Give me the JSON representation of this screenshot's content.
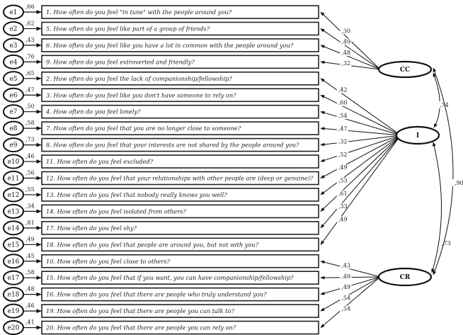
{
  "items": [
    {
      "error": "e1",
      "error_loading": ",66",
      "text": "1. How often do you feel \"in tune\" with the people around you?",
      "factor": "CC",
      "loading": ",30"
    },
    {
      "error": "e2",
      "error_loading": ",62",
      "text": "5. How often do you feel like part of a group of friends?",
      "factor": "CC",
      "loading": ",49"
    },
    {
      "error": "e3",
      "error_loading": ",43",
      "text": "6. How often do you feel like you have a lot in common with the people around you?",
      "factor": "CC",
      "loading": ",48"
    },
    {
      "error": "e4",
      "error_loading": ",76",
      "text": "9. How often do you feel extroverted and friendly?",
      "factor": "CC",
      "loading": ",32"
    },
    {
      "error": "e5",
      "error_loading": ",65",
      "text": "2. How often do you feel the lack of companionship/fellowship?",
      "factor": "I",
      "loading": ",42"
    },
    {
      "error": "e6",
      "error_loading": ",47",
      "text": "3. How often do you feel like you don't have someone to rely on?",
      "factor": "I",
      "loading": ",60"
    },
    {
      "error": "e7",
      "error_loading": ",50",
      "text": "4. How often do you feel lonely?",
      "factor": "I",
      "loading": ",54"
    },
    {
      "error": "e8",
      "error_loading": ",58",
      "text": "7. How often do you feel that you are no longer close to someone?",
      "factor": "I",
      "loading": ",47"
    },
    {
      "error": "e9",
      "error_loading": ",73",
      "text": "8.  How often do you feel that your interests are not shared by the people around you?",
      "factor": "I",
      "loading": ",32"
    },
    {
      "error": "e10",
      "error_loading": ",46",
      "text": "11. How often do you feel excluded?",
      "factor": "I",
      "loading": ",52"
    },
    {
      "error": "e11",
      "error_loading": ",56",
      "text": "12. How often do you feel that your relationships with other people are (deep or genuine)?",
      "factor": "I",
      "loading": ",49"
    },
    {
      "error": "e12",
      "error_loading": ",55",
      "text": "13. How often do you feel that nobody really knows you well?",
      "factor": "I",
      "loading": ",53"
    },
    {
      "error": "e13",
      "error_loading": ",34",
      "text": "14. How often do you feel isolated from others?",
      "factor": "I",
      "loading": ",61"
    },
    {
      "error": "e14",
      "error_loading": ",81",
      "text": "17. How often do you feel shy?",
      "factor": "I",
      "loading": ",33"
    },
    {
      "error": "e15",
      "error_loading": ",49",
      "text": "18. How often do you feel that people are around you, but not with you?",
      "factor": "I",
      "loading": ",49"
    },
    {
      "error": "e16",
      "error_loading": ",45",
      "text": "10. How often do you feel close to others?",
      "factor": "CR",
      "loading": ",43"
    },
    {
      "error": "e17",
      "error_loading": ",58",
      "text": "15. How often do you feel that if you want, you can have companionship/fellowship?",
      "factor": "CR",
      "loading": ",49"
    },
    {
      "error": "e18",
      "error_loading": ",48",
      "text": "16. How often do you feel that there are people who truly understand you?",
      "factor": "CR",
      "loading": ",49"
    },
    {
      "error": "e19",
      "error_loading": ",46",
      "text": "19. How often do you feel that there are people you can talk to?",
      "factor": "CR",
      "loading": ",54"
    },
    {
      "error": "e20",
      "error_loading": ",41",
      "text": "20. How often do you feel that there are people you can rely on?",
      "factor": "CR",
      "loading": ",54"
    }
  ],
  "factors": [
    {
      "id": "CC",
      "label": "CC"
    },
    {
      "id": "I",
      "label": "I"
    },
    {
      "id": "CR",
      "label": "CR"
    }
  ],
  "covariances": [
    {
      "from": "CC",
      "to": "I",
      "value": ",74"
    },
    {
      "from": "I",
      "to": "CR",
      "value": ",73"
    },
    {
      "from": "CC",
      "to": "CR",
      "value": ",90"
    }
  ]
}
